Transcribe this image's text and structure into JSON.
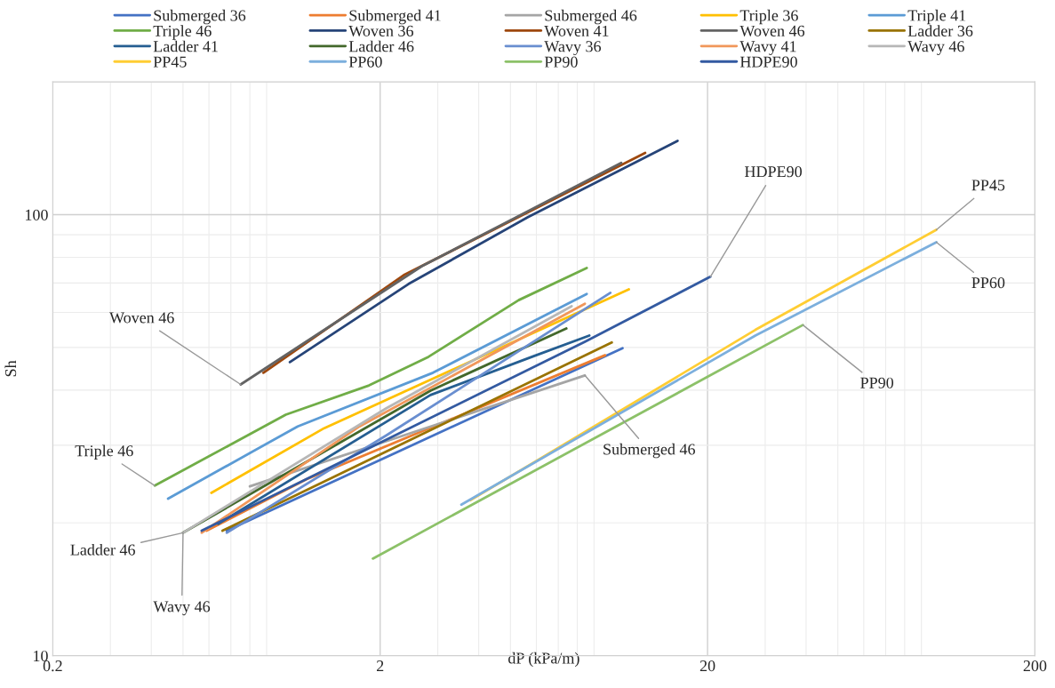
{
  "chart_data": {
    "type": "line",
    "xlabel": "dP (kPa/m)",
    "ylabel": "Sh",
    "log": "xy",
    "xlim": [
      0.2,
      200
    ],
    "ylim": [
      10,
      200
    ],
    "xticks": [
      0.2,
      2,
      20,
      200
    ],
    "yticks": [
      10,
      100
    ],
    "grid": true,
    "legend": "top",
    "marker": "none",
    "line_style": "solid",
    "series": [
      {
        "name": "Submerged 36",
        "color": "#4472c4",
        "x": [
          0.68,
          11.0
        ],
        "values": [
          19.2,
          49.8
        ]
      },
      {
        "name": "Submerged 41",
        "color": "#ed7d31",
        "x": [
          0.59,
          1.19,
          9.73
        ],
        "values": [
          19.2,
          25.1,
          48.0
        ]
      },
      {
        "name": "Submerged 46",
        "color": "#a5a5a5",
        "x": [
          0.8,
          8.44
        ],
        "values": [
          24.2,
          43.2
        ]
      },
      {
        "name": "Triple 36",
        "color": "#ffc000",
        "x": [
          0.61,
          1.35,
          11.5
        ],
        "values": [
          23.4,
          32.8,
          67.7
        ]
      },
      {
        "name": "Triple 41",
        "color": "#5b9bd5",
        "x": [
          0.45,
          1.12,
          2.9,
          8.55
        ],
        "values": [
          22.7,
          33.1,
          43.8,
          66.1
        ]
      },
      {
        "name": "Triple 46",
        "color": "#70ad47",
        "x": [
          0.41,
          1.03,
          1.85,
          2.81,
          5.3,
          8.55
        ],
        "values": [
          24.3,
          35.2,
          41.0,
          47.6,
          64.0,
          75.7
        ]
      },
      {
        "name": "Woven 36",
        "color": "#264478",
        "x": [
          1.06,
          2.44,
          5.64,
          16.2
        ],
        "values": [
          46.3,
          69.6,
          98.6,
          147
        ]
      },
      {
        "name": "Woven 41",
        "color": "#9e480e",
        "x": [
          0.88,
          2.36,
          12.9
        ],
        "values": [
          43.8,
          72.9,
          138
        ]
      },
      {
        "name": "Woven 46",
        "color": "#636363",
        "x": [
          0.75,
          2.68,
          10.9
        ],
        "values": [
          41.2,
          76.4,
          131
        ]
      },
      {
        "name": "Ladder 36",
        "color": "#997300",
        "x": [
          0.66,
          10.2
        ],
        "values": [
          19.2,
          51.3
        ]
      },
      {
        "name": "Ladder 41",
        "color": "#255e91",
        "x": [
          0.64,
          2.85,
          5.82,
          8.71
        ],
        "values": [
          19.9,
          39.0,
          47.6,
          53.2
        ]
      },
      {
        "name": "Ladder 46",
        "color": "#43682b",
        "x": [
          0.5,
          2.85,
          7.41
        ],
        "values": [
          19.0,
          39.9,
          55.2
        ]
      },
      {
        "name": "Wavy 36",
        "color": "#698ed0",
        "x": [
          0.68,
          2.09,
          10.1
        ],
        "values": [
          19.0,
          31.6,
          66.5
        ]
      },
      {
        "name": "Wavy 41",
        "color": "#f1975a",
        "x": [
          0.57,
          1.73,
          8.44
        ],
        "values": [
          19.0,
          33.1,
          62.8
        ]
      },
      {
        "name": "Wavy 46",
        "color": "#b7b7b7",
        "x": [
          0.5,
          2.09,
          7.69
        ],
        "values": [
          19.0,
          36.4,
          62.0
        ]
      },
      {
        "name": "PP45",
        "color": "#ffcd33",
        "x": [
          3.77,
          9.2,
          28.0,
          100
        ],
        "values": [
          22.5,
          33.4,
          54.8,
          92.4
        ]
      },
      {
        "name": "PP60",
        "color": "#7cafdd",
        "x": [
          3.54,
          28.0,
          100
        ],
        "values": [
          22.0,
          53.2,
          86.6
        ]
      },
      {
        "name": "PP90",
        "color": "#8cc168",
        "x": [
          1.9,
          39.1
        ],
        "values": [
          16.6,
          56.2
        ]
      },
      {
        "name": "HDPE90",
        "color": "#335aa1",
        "x": [
          0.57,
          8.44,
          20.4
        ],
        "values": [
          19.2,
          51.5,
          72.3
        ]
      }
    ],
    "annotations": [
      {
        "text": "Woven 46",
        "x": 0.75,
        "y": 41.2
      },
      {
        "text": "Triple 46",
        "x": 0.41,
        "y": 24.3
      },
      {
        "text": "Ladder 46",
        "x": 0.5,
        "y": 19.0
      },
      {
        "text": "Wavy 46",
        "x": 0.5,
        "y": 19.0
      },
      {
        "text": "Submerged 46",
        "x": 8.44,
        "y": 43.2
      },
      {
        "text": "HDPE90",
        "x": 20.4,
        "y": 72.3
      },
      {
        "text": "PP45",
        "x": 100,
        "y": 92.4
      },
      {
        "text": "PP60",
        "x": 100,
        "y": 86.6
      },
      {
        "text": "PP90",
        "x": 39.1,
        "y": 56.2
      }
    ]
  }
}
